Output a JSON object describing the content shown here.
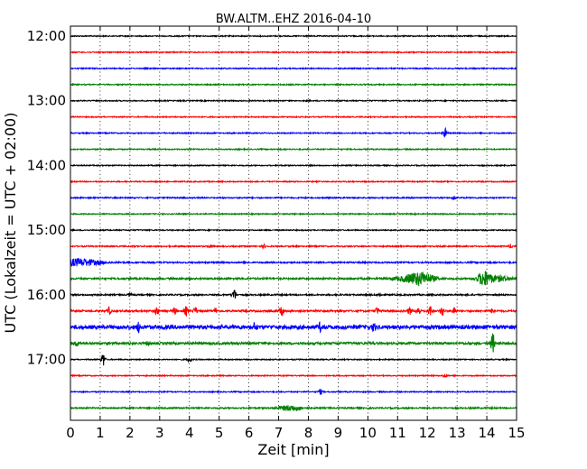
{
  "chart_data": {
    "type": "line",
    "title": "BW.ALTM..EHZ 2016-04-10",
    "xlabel": "Zeit  [min]",
    "ylabel": "UTC (Lokalzeit = UTC + 02:00)",
    "xlim": [
      0,
      15
    ],
    "x_ticks": [
      "0",
      "1",
      "2",
      "3",
      "4",
      "5",
      "6",
      "7",
      "8",
      "9",
      "10",
      "11",
      "12",
      "13",
      "14",
      "15"
    ],
    "y_tick_labels": [
      "12:00",
      "13:00",
      "14:00",
      "15:00",
      "16:00",
      "17:00"
    ],
    "grid": {
      "x": "dotted",
      "y": "none"
    },
    "line_colors": [
      "#000000",
      "#ff0000",
      "#0000ff",
      "#008000"
    ],
    "trace_interval_min": 15,
    "traces": [
      {
        "start": "12:00",
        "color": "#000000",
        "noise": 0.6,
        "events": []
      },
      {
        "start": "12:15",
        "color": "#ff0000",
        "noise": 0.6,
        "events": []
      },
      {
        "start": "12:30",
        "color": "#0000ff",
        "noise": 0.6,
        "events": []
      },
      {
        "start": "12:45",
        "color": "#008000",
        "noise": 0.6,
        "events": []
      },
      {
        "start": "13:00",
        "color": "#000000",
        "noise": 0.6,
        "events": []
      },
      {
        "start": "13:15",
        "color": "#ff0000",
        "noise": 0.6,
        "events": []
      },
      {
        "start": "13:30",
        "color": "#0000ff",
        "noise": 0.6,
        "events": [
          {
            "t": 12.6,
            "amp": 5
          }
        ]
      },
      {
        "start": "13:45",
        "color": "#008000",
        "noise": 0.6,
        "events": []
      },
      {
        "start": "14:00",
        "color": "#000000",
        "noise": 0.6,
        "events": []
      },
      {
        "start": "14:15",
        "color": "#ff0000",
        "noise": 0.6,
        "events": []
      },
      {
        "start": "14:30",
        "color": "#0000ff",
        "noise": 0.7,
        "events": [
          {
            "t": 12.9,
            "amp": 2
          }
        ]
      },
      {
        "start": "14:45",
        "color": "#008000",
        "noise": 0.6,
        "events": []
      },
      {
        "start": "15:00",
        "color": "#000000",
        "noise": 0.6,
        "events": []
      },
      {
        "start": "15:15",
        "color": "#ff0000",
        "noise": 0.7,
        "events": [
          {
            "t": 4.7,
            "amp": 2
          },
          {
            "t": 6.5,
            "amp": 2
          },
          {
            "t": 14.8,
            "amp": 2
          }
        ]
      },
      {
        "start": "15:30",
        "color": "#0000ff",
        "noise": 0.8,
        "events": [
          {
            "t": 0.3,
            "amp": 4,
            "width": 0.7
          }
        ]
      },
      {
        "start": "15:45",
        "color": "#008000",
        "noise": 1.0,
        "events": [
          {
            "t": 11.5,
            "amp": 3,
            "width": 0.6
          },
          {
            "t": 11.8,
            "amp": 5,
            "width": 0.4
          },
          {
            "t": 13.9,
            "amp": 7,
            "width": 0.2
          },
          {
            "t": 14.3,
            "amp": 3,
            "width": 0.5
          }
        ]
      },
      {
        "start": "16:00",
        "color": "#000000",
        "noise": 0.8,
        "events": [
          {
            "t": 0.8,
            "amp": 2
          },
          {
            "t": 2.0,
            "amp": 2
          },
          {
            "t": 5.5,
            "amp": 7
          },
          {
            "t": 10.4,
            "amp": 2
          }
        ]
      },
      {
        "start": "16:15",
        "color": "#ff0000",
        "noise": 1.0,
        "events": [
          {
            "t": 1.3,
            "amp": 4
          },
          {
            "t": 2.9,
            "amp": 5
          },
          {
            "t": 3.5,
            "amp": 4
          },
          {
            "t": 3.9,
            "amp": 5
          },
          {
            "t": 4.2,
            "amp": 4
          },
          {
            "t": 4.9,
            "amp": 3
          },
          {
            "t": 7.1,
            "amp": 7
          },
          {
            "t": 10.3,
            "amp": 4
          },
          {
            "t": 11.4,
            "amp": 4
          },
          {
            "t": 11.7,
            "amp": 5
          },
          {
            "t": 12.1,
            "amp": 6
          },
          {
            "t": 12.5,
            "amp": 6
          },
          {
            "t": 12.9,
            "amp": 5
          },
          {
            "t": 14.2,
            "amp": 3
          }
        ]
      },
      {
        "start": "16:30",
        "color": "#0000ff",
        "noise": 2.2,
        "events": [
          {
            "t": 2.3,
            "amp": 5
          },
          {
            "t": 6.2,
            "amp": 4
          },
          {
            "t": 8.4,
            "amp": 4
          },
          {
            "t": 10.2,
            "amp": 4
          }
        ]
      },
      {
        "start": "16:45",
        "color": "#008000",
        "noise": 1.3,
        "events": [
          {
            "t": 0.2,
            "amp": 3
          },
          {
            "t": 2.6,
            "amp": 2
          },
          {
            "t": 14.2,
            "amp": 11
          }
        ]
      },
      {
        "start": "17:00",
        "color": "#000000",
        "noise": 0.6,
        "events": [
          {
            "t": 1.1,
            "amp": 8
          },
          {
            "t": 4.0,
            "amp": 3
          }
        ]
      },
      {
        "start": "17:15",
        "color": "#ff0000",
        "noise": 0.6,
        "events": [
          {
            "t": 12.6,
            "amp": 2
          }
        ]
      },
      {
        "start": "17:30",
        "color": "#0000ff",
        "noise": 0.6,
        "events": [
          {
            "t": 8.4,
            "amp": 3
          }
        ]
      },
      {
        "start": "17:45",
        "color": "#008000",
        "noise": 0.8,
        "events": [
          {
            "t": 7.4,
            "amp": 3,
            "width": 0.4
          }
        ]
      }
    ]
  }
}
